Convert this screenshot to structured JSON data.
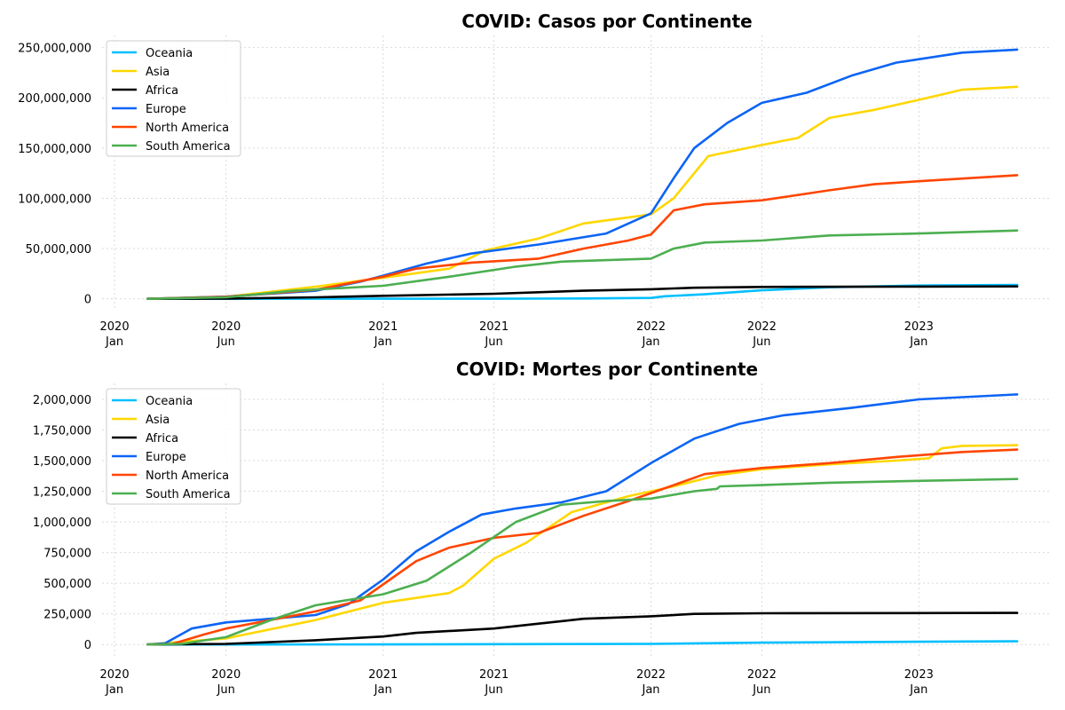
{
  "chart_data": [
    {
      "type": "line",
      "title": "COVID: Casos por Continente",
      "xlabel": "",
      "ylabel": "",
      "x_ticks": [
        {
          "date": "2020-01-01",
          "line1": "2020",
          "line2": "Jan"
        },
        {
          "date": "2020-06-01",
          "line1": "2020",
          "line2": "Jun"
        },
        {
          "date": "2021-01-01",
          "line1": "2021",
          "line2": "Jan"
        },
        {
          "date": "2021-06-01",
          "line1": "2021",
          "line2": "Jun"
        },
        {
          "date": "2022-01-01",
          "line1": "2022",
          "line2": "Jan"
        },
        {
          "date": "2022-06-01",
          "line1": "2022",
          "line2": "Jun"
        },
        {
          "date": "2023-01-01",
          "line1": "2023",
          "line2": "Jan"
        }
      ],
      "xlim": [
        "2019-12-15",
        "2023-07-01"
      ],
      "y_ticks": [
        0,
        50000000,
        100000000,
        150000000,
        200000000,
        250000000
      ],
      "y_tick_labels": [
        "0",
        "50,000,000",
        "100,000,000",
        "150,000,000",
        "200,000,000",
        "250,000,000"
      ],
      "ylim": [
        -10000000,
        262000000
      ],
      "grid": true,
      "legend_position": "top-left",
      "series": [
        {
          "name": "Oceania",
          "color": "#00BFFF",
          "points": [
            [
              "2020-02-15",
              0
            ],
            [
              "2021-01-01",
              28000
            ],
            [
              "2021-06-01",
              45000
            ],
            [
              "2021-10-01",
              300000
            ],
            [
              "2022-01-01",
              900000
            ],
            [
              "2022-01-20",
              2500000
            ],
            [
              "2022-03-15",
              4500000
            ],
            [
              "2022-06-01",
              8500000
            ],
            [
              "2022-09-01",
              11500000
            ],
            [
              "2023-01-01",
              13200000
            ],
            [
              "2023-05-15",
              13800000
            ]
          ]
        },
        {
          "name": "Asia",
          "color": "#FFD700",
          "points": [
            [
              "2020-02-15",
              0
            ],
            [
              "2020-06-01",
              2000000
            ],
            [
              "2020-10-01",
              12000000
            ],
            [
              "2021-01-01",
              21000000
            ],
            [
              "2021-04-01",
              30000000
            ],
            [
              "2021-05-20",
              48000000
            ],
            [
              "2021-08-01",
              60000000
            ],
            [
              "2021-10-01",
              75000000
            ],
            [
              "2022-01-01",
              84000000
            ],
            [
              "2022-02-01",
              100000000
            ],
            [
              "2022-03-01",
              125000000
            ],
            [
              "2022-03-20",
              142000000
            ],
            [
              "2022-06-01",
              153000000
            ],
            [
              "2022-07-20",
              160000000
            ],
            [
              "2022-09-01",
              180000000
            ],
            [
              "2022-11-01",
              188000000
            ],
            [
              "2023-01-01",
              198000000
            ],
            [
              "2023-03-01",
              208000000
            ],
            [
              "2023-05-15",
              211000000
            ]
          ]
        },
        {
          "name": "Africa",
          "color": "#000000",
          "points": [
            [
              "2020-02-15",
              0
            ],
            [
              "2020-06-01",
              200000
            ],
            [
              "2020-10-01",
              1500000
            ],
            [
              "2021-01-01",
              3000000
            ],
            [
              "2021-06-01",
              5000000
            ],
            [
              "2021-10-01",
              8000000
            ],
            [
              "2022-01-01",
              9500000
            ],
            [
              "2022-03-01",
              11000000
            ],
            [
              "2022-06-01",
              11800000
            ],
            [
              "2023-01-01",
              12200000
            ],
            [
              "2023-05-15",
              12300000
            ]
          ]
        },
        {
          "name": "Europe",
          "color": "#0B64F5",
          "points": [
            [
              "2020-02-15",
              0
            ],
            [
              "2020-06-01",
              2200000
            ],
            [
              "2020-10-01",
              8000000
            ],
            [
              "2020-12-01",
              17000000
            ],
            [
              "2021-01-01",
              23000000
            ],
            [
              "2021-03-01",
              35000000
            ],
            [
              "2021-05-01",
              45000000
            ],
            [
              "2021-08-01",
              54000000
            ],
            [
              "2021-11-01",
              65000000
            ],
            [
              "2022-01-01",
              85000000
            ],
            [
              "2022-02-01",
              120000000
            ],
            [
              "2022-03-01",
              150000000
            ],
            [
              "2022-04-15",
              175000000
            ],
            [
              "2022-06-01",
              195000000
            ],
            [
              "2022-08-01",
              205000000
            ],
            [
              "2022-10-01",
              222000000
            ],
            [
              "2022-12-01",
              235000000
            ],
            [
              "2023-03-01",
              245000000
            ],
            [
              "2023-05-15",
              248000000
            ]
          ]
        },
        {
          "name": "North America",
          "color": "#FF4500",
          "points": [
            [
              "2020-02-15",
              0
            ],
            [
              "2020-06-01",
              2000000
            ],
            [
              "2020-10-01",
              9000000
            ],
            [
              "2021-01-01",
              22000000
            ],
            [
              "2021-02-15",
              30000000
            ],
            [
              "2021-05-01",
              36000000
            ],
            [
              "2021-08-01",
              40000000
            ],
            [
              "2021-10-01",
              50000000
            ],
            [
              "2021-12-01",
              58000000
            ],
            [
              "2022-01-01",
              64000000
            ],
            [
              "2022-02-01",
              88000000
            ],
            [
              "2022-03-15",
              94000000
            ],
            [
              "2022-06-01",
              98000000
            ],
            [
              "2022-09-01",
              108000000
            ],
            [
              "2022-11-01",
              114000000
            ],
            [
              "2023-01-01",
              117000000
            ],
            [
              "2023-05-15",
              123000000
            ]
          ]
        },
        {
          "name": "South America",
          "color": "#4CAF50",
          "points": [
            [
              "2020-02-15",
              0
            ],
            [
              "2020-06-01",
              1500000
            ],
            [
              "2020-09-01",
              8000000
            ],
            [
              "2021-01-01",
              13000000
            ],
            [
              "2021-04-01",
              22000000
            ],
            [
              "2021-07-01",
              32000000
            ],
            [
              "2021-09-01",
              37000000
            ],
            [
              "2022-01-01",
              40000000
            ],
            [
              "2022-02-01",
              50000000
            ],
            [
              "2022-03-15",
              56000000
            ],
            [
              "2022-06-01",
              58000000
            ],
            [
              "2022-09-01",
              63000000
            ],
            [
              "2023-01-01",
              65000000
            ],
            [
              "2023-05-15",
              68000000
            ]
          ]
        }
      ]
    },
    {
      "type": "line",
      "title": "COVID: Mortes por Continente",
      "xlabel": "",
      "ylabel": "",
      "x_ticks": [
        {
          "date": "2020-01-01",
          "line1": "2020",
          "line2": "Jan"
        },
        {
          "date": "2020-06-01",
          "line1": "2020",
          "line2": "Jun"
        },
        {
          "date": "2021-01-01",
          "line1": "2021",
          "line2": "Jan"
        },
        {
          "date": "2021-06-01",
          "line1": "2021",
          "line2": "Jun"
        },
        {
          "date": "2022-01-01",
          "line1": "2022",
          "line2": "Jan"
        },
        {
          "date": "2022-06-01",
          "line1": "2022",
          "line2": "Jun"
        },
        {
          "date": "2023-01-01",
          "line1": "2023",
          "line2": "Jan"
        }
      ],
      "xlim": [
        "2019-12-15",
        "2023-07-01"
      ],
      "y_ticks": [
        0,
        250000,
        500000,
        750000,
        1000000,
        1250000,
        1500000,
        1750000,
        2000000
      ],
      "y_tick_labels": [
        "0",
        "250,000",
        "500,000",
        "750,000",
        "1,000,000",
        "1,250,000",
        "1,500,000",
        "1,750,000",
        "2,000,000"
      ],
      "ylim": [
        -100000,
        2130000
      ],
      "grid": true,
      "legend_position": "top-left",
      "series": [
        {
          "name": "Oceania",
          "color": "#00BFFF",
          "points": [
            [
              "2020-02-15",
              0
            ],
            [
              "2021-01-01",
              1000
            ],
            [
              "2022-01-01",
              5000
            ],
            [
              "2022-06-01",
              15000
            ],
            [
              "2023-01-01",
              22000
            ],
            [
              "2023-05-15",
              26000
            ]
          ]
        },
        {
          "name": "Asia",
          "color": "#FFD700",
          "points": [
            [
              "2020-02-15",
              0
            ],
            [
              "2020-06-01",
              50000
            ],
            [
              "2020-10-01",
              200000
            ],
            [
              "2021-01-01",
              340000
            ],
            [
              "2021-04-01",
              420000
            ],
            [
              "2021-04-20",
              480000
            ],
            [
              "2021-06-01",
              700000
            ],
            [
              "2021-07-15",
              830000
            ],
            [
              "2021-09-15",
              1080000
            ],
            [
              "2021-12-01",
              1210000
            ],
            [
              "2022-02-01",
              1290000
            ],
            [
              "2022-04-01",
              1380000
            ],
            [
              "2022-06-01",
              1430000
            ],
            [
              "2022-09-01",
              1470000
            ],
            [
              "2022-12-01",
              1500000
            ],
            [
              "2023-01-15",
              1520000
            ],
            [
              "2023-02-01",
              1600000
            ],
            [
              "2023-03-01",
              1620000
            ],
            [
              "2023-05-15",
              1625000
            ]
          ]
        },
        {
          "name": "Africa",
          "color": "#000000",
          "points": [
            [
              "2020-02-15",
              0
            ],
            [
              "2020-06-01",
              5000
            ],
            [
              "2020-10-01",
              35000
            ],
            [
              "2021-01-01",
              65000
            ],
            [
              "2021-02-15",
              95000
            ],
            [
              "2021-06-01",
              130000
            ],
            [
              "2021-08-01",
              170000
            ],
            [
              "2021-10-01",
              210000
            ],
            [
              "2022-01-01",
              230000
            ],
            [
              "2022-03-01",
              250000
            ],
            [
              "2022-06-01",
              255000
            ],
            [
              "2023-05-15",
              258000
            ]
          ]
        },
        {
          "name": "Europe",
          "color": "#0B64F5",
          "points": [
            [
              "2020-02-15",
              0
            ],
            [
              "2020-03-10",
              10000
            ],
            [
              "2020-04-15",
              130000
            ],
            [
              "2020-06-01",
              180000
            ],
            [
              "2020-08-01",
              210000
            ],
            [
              "2020-10-01",
              240000
            ],
            [
              "2020-11-15",
              330000
            ],
            [
              "2021-01-01",
              530000
            ],
            [
              "2021-02-15",
              760000
            ],
            [
              "2021-04-01",
              920000
            ],
            [
              "2021-05-15",
              1060000
            ],
            [
              "2021-07-01",
              1110000
            ],
            [
              "2021-09-01",
              1160000
            ],
            [
              "2021-11-01",
              1250000
            ],
            [
              "2022-01-01",
              1480000
            ],
            [
              "2022-03-01",
              1680000
            ],
            [
              "2022-05-01",
              1800000
            ],
            [
              "2022-07-01",
              1870000
            ],
            [
              "2022-10-01",
              1930000
            ],
            [
              "2023-01-01",
              2000000
            ],
            [
              "2023-05-15",
              2040000
            ]
          ]
        },
        {
          "name": "North America",
          "color": "#FF4500",
          "points": [
            [
              "2020-02-15",
              0
            ],
            [
              "2020-03-20",
              5000
            ],
            [
              "2020-05-01",
              80000
            ],
            [
              "2020-06-01",
              130000
            ],
            [
              "2020-08-01",
              200000
            ],
            [
              "2020-10-01",
              270000
            ],
            [
              "2020-12-01",
              360000
            ],
            [
              "2021-01-01",
              490000
            ],
            [
              "2021-02-15",
              680000
            ],
            [
              "2021-04-01",
              790000
            ],
            [
              "2021-06-01",
              870000
            ],
            [
              "2021-08-01",
              910000
            ],
            [
              "2021-10-01",
              1050000
            ],
            [
              "2021-12-01",
              1170000
            ],
            [
              "2022-02-01",
              1300000
            ],
            [
              "2022-03-15",
              1390000
            ],
            [
              "2022-06-01",
              1440000
            ],
            [
              "2022-09-01",
              1480000
            ],
            [
              "2022-12-01",
              1530000
            ],
            [
              "2023-03-01",
              1570000
            ],
            [
              "2023-05-15",
              1590000
            ]
          ]
        },
        {
          "name": "South America",
          "color": "#4CAF50",
          "points": [
            [
              "2020-02-15",
              0
            ],
            [
              "2020-04-01",
              5000
            ],
            [
              "2020-06-01",
              60000
            ],
            [
              "2020-08-01",
              200000
            ],
            [
              "2020-10-01",
              320000
            ],
            [
              "2021-01-01",
              410000
            ],
            [
              "2021-03-01",
              520000
            ],
            [
              "2021-05-01",
              750000
            ],
            [
              "2021-07-01",
              1000000
            ],
            [
              "2021-09-01",
              1140000
            ],
            [
              "2021-11-01",
              1170000
            ],
            [
              "2022-01-01",
              1190000
            ],
            [
              "2022-03-01",
              1250000
            ],
            [
              "2022-04-01",
              1270000
            ],
            [
              "2022-04-05",
              1290000
            ],
            [
              "2022-06-01",
              1300000
            ],
            [
              "2022-09-01",
              1320000
            ],
            [
              "2023-01-01",
              1335000
            ],
            [
              "2023-05-15",
              1350000
            ]
          ]
        }
      ]
    }
  ]
}
